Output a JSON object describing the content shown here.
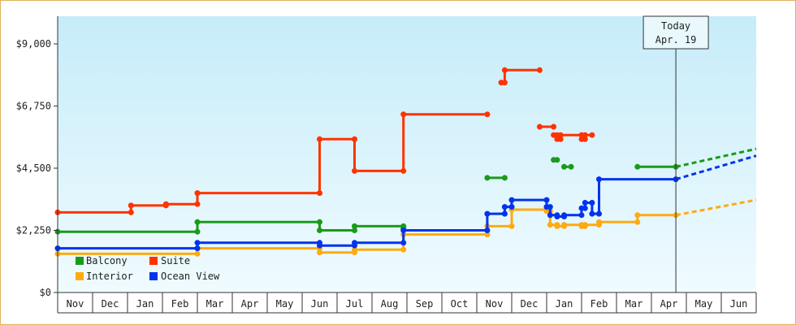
{
  "chart_data": {
    "type": "line",
    "title": "",
    "xlabel": "",
    "ylabel": "",
    "ylim": [
      0,
      10000
    ],
    "y_ticks": [
      "$0",
      "$2,250",
      "$4,500",
      "$6,750",
      "$9,000"
    ],
    "y_tick_values": [
      0,
      2250,
      4500,
      6750,
      9000
    ],
    "x_ticks": [
      "Nov",
      "Dec",
      "Jan",
      "Feb",
      "Mar",
      "Apr",
      "May",
      "Jun",
      "Jul",
      "Aug",
      "Sep",
      "Oct",
      "Nov",
      "Dec",
      "Jan",
      "Feb",
      "Mar",
      "Apr",
      "May",
      "Jun"
    ],
    "x_month_index_start": 0,
    "grid": false,
    "background": "light-blue gradient",
    "legend_placement": "bottom-left",
    "annotation": {
      "line1": "Today",
      "line2": "Apr. 19",
      "x": 17.7
    },
    "series": [
      {
        "name": "Balcony",
        "color": "#1a9a1a",
        "segments": [
          [
            [
              0,
              2200
            ],
            [
              4.0,
              2200
            ],
            [
              4.0,
              2550
            ],
            [
              7.5,
              2550
            ],
            [
              7.5,
              2250
            ],
            [
              8.5,
              2250
            ],
            [
              8.5,
              2400
            ],
            [
              9.9,
              2400
            ],
            [
              9.9,
              2300
            ],
            [
              9.9,
              2350
            ]
          ],
          [
            [
              12.3,
              4150
            ],
            [
              12.8,
              4150
            ]
          ],
          [
            [
              14.2,
              4800
            ],
            [
              14.3,
              4800
            ]
          ],
          [
            [
              14.5,
              4550
            ],
            [
              14.7,
              4550
            ]
          ],
          [
            [
              16.6,
              4550
            ],
            [
              17.7,
              4550
            ]
          ]
        ],
        "forecast": [
          [
            17.7,
            4550
          ],
          [
            20.0,
            5200
          ]
        ]
      },
      {
        "name": "Suite",
        "color": "#ff3300",
        "segments": [
          [
            [
              0,
              2900
            ],
            [
              2.1,
              2900
            ],
            [
              2.1,
              3150
            ],
            [
              3.1,
              3150
            ],
            [
              3.1,
              3200
            ],
            [
              4.0,
              3200
            ],
            [
              4.0,
              3600
            ],
            [
              7.5,
              3600
            ],
            [
              7.5,
              5550
            ],
            [
              8.5,
              5550
            ],
            [
              8.5,
              4400
            ],
            [
              9.9,
              4400
            ],
            [
              9.9,
              6450
            ],
            [
              12.3,
              6450
            ]
          ],
          [
            [
              12.7,
              7600
            ],
            [
              12.8,
              7600
            ],
            [
              12.8,
              8050
            ],
            [
              13.8,
              8050
            ]
          ],
          [
            [
              13.8,
              6000
            ],
            [
              14.2,
              6000
            ]
          ],
          [
            [
              14.2,
              5700
            ],
            [
              14.3,
              5700
            ],
            [
              14.3,
              5550
            ],
            [
              14.4,
              5550
            ],
            [
              14.4,
              5700
            ],
            [
              15.0,
              5700
            ],
            [
              15.0,
              5550
            ],
            [
              15.1,
              5550
            ],
            [
              15.1,
              5700
            ],
            [
              15.3,
              5700
            ]
          ]
        ],
        "forecast": []
      },
      {
        "name": "Interior",
        "color": "#ffaa11",
        "segments": [
          [
            [
              0,
              1400
            ],
            [
              4.0,
              1400
            ],
            [
              4.0,
              1600
            ],
            [
              7.5,
              1600
            ],
            [
              7.5,
              1450
            ],
            [
              8.5,
              1450
            ],
            [
              8.5,
              1550
            ],
            [
              9.9,
              1550
            ],
            [
              9.9,
              2100
            ],
            [
              12.3,
              2100
            ],
            [
              12.3,
              2400
            ],
            [
              13.0,
              2400
            ],
            [
              13.0,
              3000
            ],
            [
              14.0,
              3000
            ],
            [
              14.0,
              2950
            ],
            [
              14.1,
              2950
            ],
            [
              14.1,
              2450
            ],
            [
              14.3,
              2450
            ],
            [
              14.3,
              2400
            ],
            [
              14.5,
              2400
            ],
            [
              14.5,
              2450
            ],
            [
              15.0,
              2450
            ],
            [
              15.0,
              2400
            ],
            [
              15.1,
              2400
            ],
            [
              15.1,
              2450
            ],
            [
              15.5,
              2450
            ],
            [
              15.5,
              2550
            ],
            [
              16.6,
              2550
            ],
            [
              16.6,
              2800
            ],
            [
              17.7,
              2800
            ]
          ]
        ],
        "forecast": [
          [
            17.7,
            2800
          ],
          [
            20.0,
            3350
          ]
        ]
      },
      {
        "name": "Ocean View",
        "color": "#0033ee",
        "segments": [
          [
            [
              0,
              1600
            ],
            [
              4.0,
              1600
            ],
            [
              4.0,
              1800
            ],
            [
              7.5,
              1800
            ],
            [
              7.5,
              1700
            ],
            [
              8.5,
              1700
            ],
            [
              8.5,
              1800
            ],
            [
              9.9,
              1800
            ],
            [
              9.9,
              2250
            ],
            [
              12.3,
              2250
            ],
            [
              12.3,
              2850
            ],
            [
              12.8,
              2850
            ],
            [
              12.8,
              3100
            ],
            [
              13.0,
              3100
            ],
            [
              13.0,
              3350
            ],
            [
              14.0,
              3350
            ],
            [
              14.0,
              3100
            ],
            [
              14.1,
              3100
            ],
            [
              14.1,
              2800
            ],
            [
              14.3,
              2800
            ],
            [
              14.3,
              2750
            ],
            [
              14.5,
              2750
            ],
            [
              14.5,
              2800
            ],
            [
              15.0,
              2800
            ],
            [
              15.0,
              3050
            ],
            [
              15.1,
              3050
            ],
            [
              15.1,
              3250
            ],
            [
              15.3,
              3250
            ],
            [
              15.3,
              2850
            ],
            [
              15.5,
              2850
            ],
            [
              15.5,
              4100
            ],
            [
              17.7,
              4100
            ]
          ]
        ],
        "forecast": [
          [
            17.7,
            4100
          ],
          [
            20.0,
            4950
          ]
        ]
      }
    ]
  }
}
